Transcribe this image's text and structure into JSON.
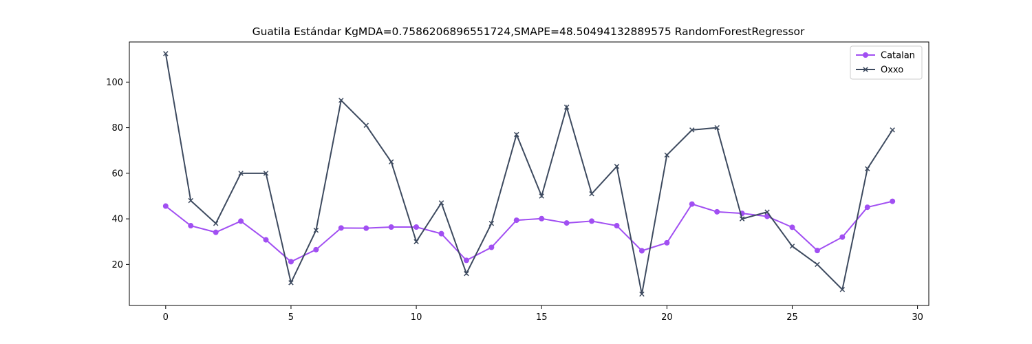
{
  "chart_data": {
    "type": "line",
    "title": "Guatila Estándar KgMDA=0.7586206896551724,SMAPE=48.50494132889575 RandomForestRegressor",
    "xlabel": "",
    "ylabel": "",
    "xlim": [
      -1.45,
      30.45
    ],
    "ylim": [
      2.0,
      117.6
    ],
    "x_ticks": [
      0,
      5,
      10,
      15,
      20,
      25,
      30
    ],
    "y_ticks": [
      20,
      40,
      60,
      80,
      100
    ],
    "grid": false,
    "legend_position": "top-right",
    "x": [
      0,
      1,
      2,
      3,
      4,
      5,
      6,
      7,
      8,
      9,
      10,
      11,
      12,
      13,
      14,
      15,
      16,
      17,
      18,
      19,
      20,
      21,
      22,
      23,
      24,
      25,
      26,
      27,
      28,
      29
    ],
    "series": [
      {
        "name": "Catalan",
        "marker": "circle",
        "color": "#a14ff2",
        "values": [
          45.6,
          37.0,
          34.1,
          39.0,
          30.8,
          21.2,
          26.5,
          36.0,
          35.9,
          36.4,
          36.4,
          33.5,
          21.8,
          27.5,
          39.4,
          40.1,
          38.2,
          39.0,
          37.0,
          26.0,
          29.5,
          46.5,
          43.1,
          42.4,
          41.1,
          36.3,
          26.1,
          32.0,
          45.1,
          47.7
        ]
      },
      {
        "name": "Oxxo",
        "marker": "x",
        "color": "#3d4a5f",
        "values": [
          112.5,
          48.0,
          38.0,
          60.0,
          60.0,
          12.0,
          35.0,
          92.0,
          81.0,
          65.0,
          30.0,
          47.0,
          16.0,
          38.0,
          77.0,
          50.0,
          89.0,
          51.0,
          63.0,
          7.0,
          68.0,
          79.0,
          80.0,
          40.0,
          43.0,
          28.0,
          20.0,
          9.0,
          62.0,
          79.0
        ]
      }
    ]
  }
}
